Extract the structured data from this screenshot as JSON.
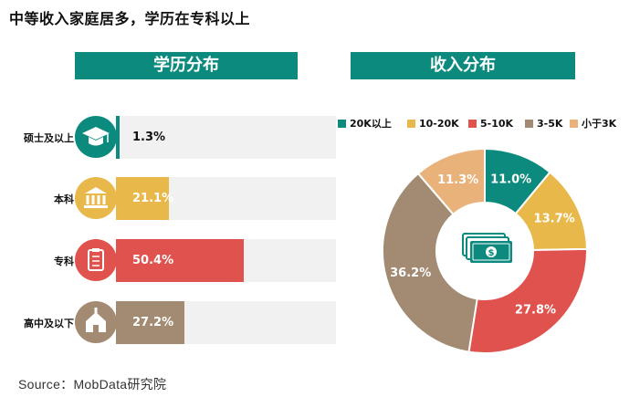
{
  "title": "中等收入家庭居多，学历在专科以上",
  "source": "Source：MobData研究院",
  "chart_data": [
    {
      "type": "bar",
      "orientation": "horizontal",
      "title": "学历分布",
      "categories": [
        "硕士及以上",
        "本科",
        "专科",
        "高中及以下"
      ],
      "values": [
        1.3,
        21.1,
        50.4,
        27.2
      ],
      "labels": [
        "1.3%",
        "21.1%",
        "50.4%",
        "27.2%"
      ],
      "unit": "%",
      "xlim": [
        0,
        100
      ],
      "icons": [
        "graduation-cap-icon",
        "institution-icon",
        "clipboard-icon",
        "school-house-icon"
      ],
      "colors": [
        "#0b8a7d",
        "#e8b94a",
        "#e0524d",
        "#a38a72"
      ],
      "track_color": "#f1f1f1"
    },
    {
      "type": "pie",
      "donut": true,
      "title": "收入分布",
      "categories": [
        "20K以上",
        "10-20K",
        "5-10K",
        "3-5K",
        "小于3K"
      ],
      "values": [
        11.0,
        13.7,
        27.8,
        36.2,
        11.3
      ],
      "labels": [
        "11.0%",
        "13.7%",
        "27.8%",
        "36.2%",
        "11.3%"
      ],
      "colors": [
        "#0b8a7d",
        "#e8b94a",
        "#e0524d",
        "#a38a72",
        "#e9b27a"
      ],
      "legend_position": "top",
      "center_icon": "money-stack-icon"
    }
  ]
}
